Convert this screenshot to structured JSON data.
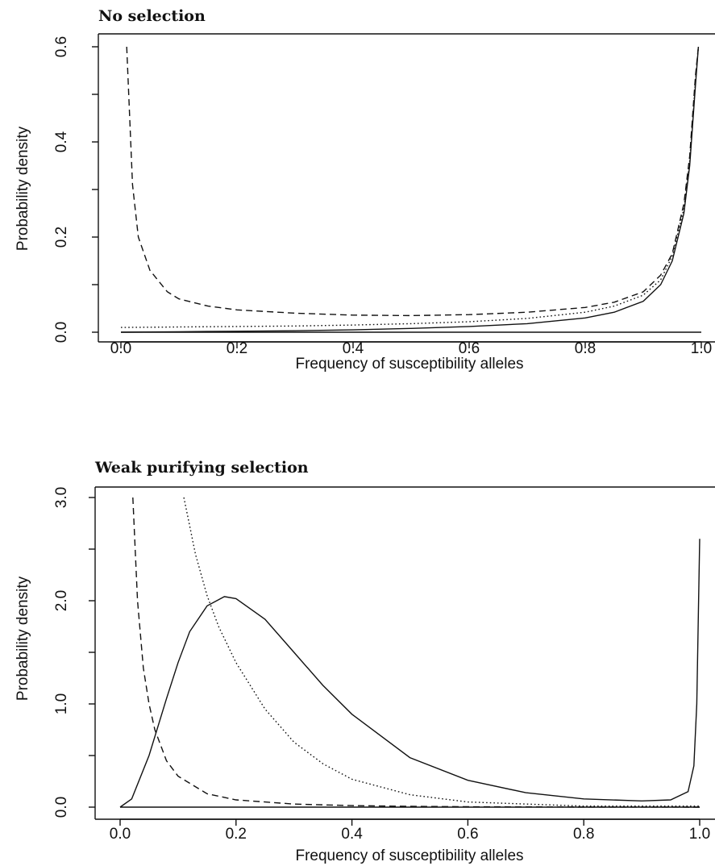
{
  "chart_data": [
    {
      "type": "line",
      "title": "No selection",
      "xlabel": "Frequency of susceptibility alleles",
      "ylabel": "Probability density",
      "xlim": [
        0,
        1
      ],
      "ylim": [
        0,
        0.6
      ],
      "xticks": [
        "0.0",
        "0.2",
        "0.4",
        "0.6",
        "0.8",
        "1.0"
      ],
      "yticks": [
        "0.0",
        "0.2",
        "0.4",
        "0.6"
      ],
      "series": [
        {
          "style": "solid",
          "x": [
            0,
            0.1,
            0.2,
            0.3,
            0.4,
            0.5,
            0.6,
            0.7,
            0.8,
            0.85,
            0.9,
            0.93,
            0.95,
            0.97,
            0.98,
            0.99,
            0.995
          ],
          "y": [
            0,
            0.001,
            0.002,
            0.003,
            0.005,
            0.008,
            0.012,
            0.018,
            0.03,
            0.042,
            0.065,
            0.1,
            0.15,
            0.25,
            0.35,
            0.52,
            0.6
          ]
        },
        {
          "style": "dashed",
          "x": [
            0.01,
            0.02,
            0.03,
            0.05,
            0.08,
            0.1,
            0.15,
            0.2,
            0.3,
            0.4,
            0.5,
            0.6,
            0.7,
            0.8,
            0.85,
            0.9,
            0.93,
            0.95,
            0.97,
            0.98,
            0.99,
            0.995
          ],
          "y": [
            0.6,
            0.31,
            0.2,
            0.13,
            0.085,
            0.07,
            0.055,
            0.047,
            0.04,
            0.036,
            0.035,
            0.037,
            0.042,
            0.052,
            0.063,
            0.085,
            0.12,
            0.165,
            0.27,
            0.37,
            0.54,
            0.6
          ]
        },
        {
          "style": "dotted",
          "x": [
            0,
            0.1,
            0.2,
            0.3,
            0.4,
            0.5,
            0.6,
            0.7,
            0.8,
            0.85,
            0.9,
            0.93,
            0.95,
            0.97,
            0.98,
            0.99,
            0.995
          ],
          "y": [
            0.01,
            0.011,
            0.012,
            0.013,
            0.015,
            0.018,
            0.022,
            0.029,
            0.042,
            0.055,
            0.078,
            0.11,
            0.16,
            0.26,
            0.36,
            0.53,
            0.6
          ]
        },
        {
          "style": "solid",
          "x": [
            0,
            1
          ],
          "y": [
            0,
            0
          ]
        }
      ]
    },
    {
      "type": "line",
      "title": "Weak purifying selection",
      "xlabel": "Frequency of susceptibility alleles",
      "ylabel": "Probability density",
      "xlim": [
        0,
        1
      ],
      "ylim": [
        0,
        3
      ],
      "xticks": [
        "0.0",
        "0.2",
        "0.4",
        "0.6",
        "0.8",
        "1.0"
      ],
      "yticks": [
        "0.0",
        "1.0",
        "2.0",
        "3.0"
      ],
      "series": [
        {
          "style": "solid",
          "x": [
            0,
            0.02,
            0.05,
            0.08,
            0.1,
            0.12,
            0.15,
            0.18,
            0.2,
            0.25,
            0.3,
            0.35,
            0.4,
            0.5,
            0.6,
            0.7,
            0.8,
            0.9,
            0.95,
            0.98,
            0.99,
            0.995,
            1.0
          ],
          "y": [
            0,
            0.08,
            0.5,
            1.05,
            1.4,
            1.7,
            1.95,
            2.04,
            2.02,
            1.82,
            1.5,
            1.18,
            0.9,
            0.48,
            0.26,
            0.14,
            0.08,
            0.06,
            0.07,
            0.15,
            0.4,
            1.0,
            2.6
          ]
        },
        {
          "style": "dashed",
          "x": [
            0.022,
            0.03,
            0.04,
            0.05,
            0.06,
            0.08,
            0.1,
            0.15,
            0.2,
            0.3,
            0.4,
            0.5,
            0.6,
            0.8,
            1.0
          ],
          "y": [
            3.0,
            2.0,
            1.35,
            1.0,
            0.75,
            0.45,
            0.3,
            0.13,
            0.07,
            0.03,
            0.015,
            0.008,
            0.004,
            0.001,
            0
          ]
        },
        {
          "style": "dotted",
          "x": [
            0.11,
            0.13,
            0.15,
            0.17,
            0.2,
            0.25,
            0.3,
            0.35,
            0.4,
            0.5,
            0.6,
            0.8,
            1.0
          ],
          "y": [
            3.0,
            2.45,
            2.05,
            1.75,
            1.4,
            0.95,
            0.63,
            0.42,
            0.27,
            0.12,
            0.05,
            0.01,
            0.01
          ]
        },
        {
          "style": "solid",
          "x": [
            0,
            1
          ],
          "y": [
            0,
            0
          ]
        }
      ]
    }
  ]
}
